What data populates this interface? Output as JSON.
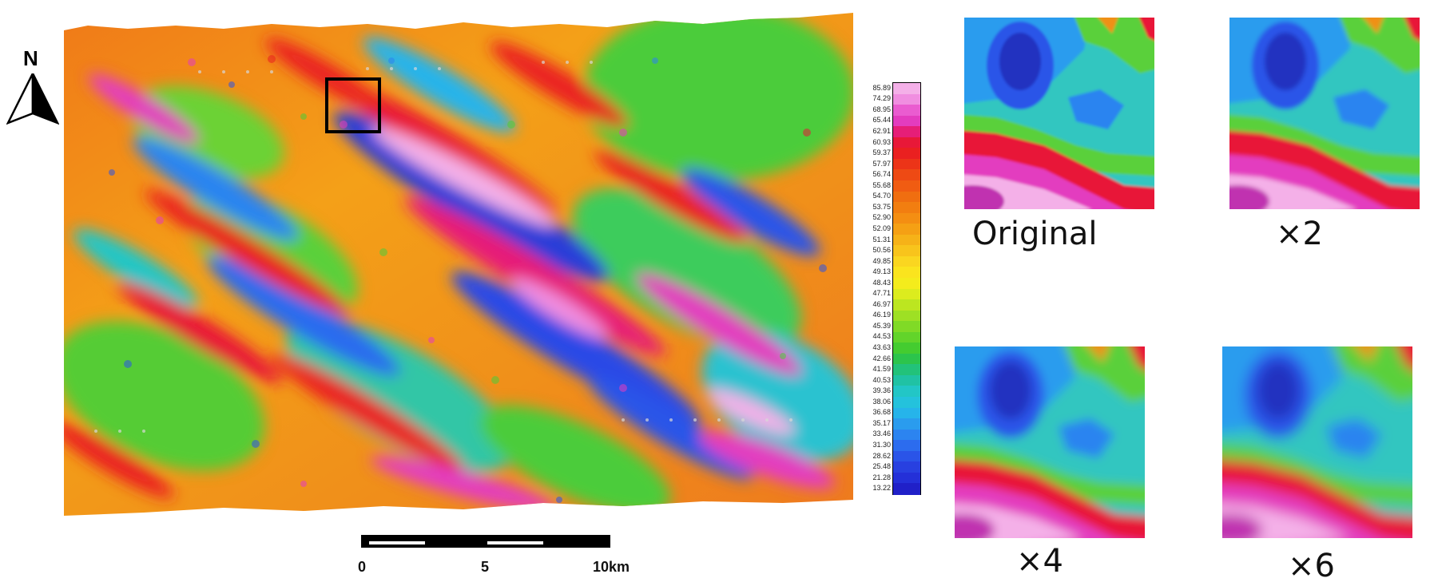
{
  "north_arrow": {
    "label": "N"
  },
  "legend": {
    "values": [
      "85.89",
      "74.29",
      "68.95",
      "65.44",
      "62.91",
      "60.93",
      "59.37",
      "57.97",
      "56.74",
      "55.68",
      "54.70",
      "53.75",
      "52.90",
      "52.09",
      "51.31",
      "50.56",
      "49.85",
      "49.13",
      "48.43",
      "47.71",
      "46.97",
      "46.19",
      "45.39",
      "44.53",
      "43.63",
      "42.66",
      "41.59",
      "40.53",
      "39.36",
      "38.06",
      "36.68",
      "35.17",
      "33.46",
      "31.30",
      "28.62",
      "25.48",
      "21.28",
      "13.22"
    ],
    "colors": [
      "#f4b0e8",
      "#f08ee0",
      "#ea5cd0",
      "#e33cbf",
      "#e61e78",
      "#e81838",
      "#ea2020",
      "#ec3418",
      "#ee4a14",
      "#f05c12",
      "#f06e10",
      "#f27e10",
      "#f48e12",
      "#f5a014",
      "#f6b218",
      "#f8c41c",
      "#fad620",
      "#fae41e",
      "#f4ec1c",
      "#dcec1e",
      "#bce620",
      "#9ee024",
      "#80da26",
      "#62d42a",
      "#44cc30",
      "#2cc44c",
      "#22c27a",
      "#20c2a4",
      "#22c6c6",
      "#24c2dc",
      "#26b4ea",
      "#2a9cee",
      "#2c84f0",
      "#2c6cee",
      "#2a54e8",
      "#2840e0",
      "#2430d8",
      "#2020c8"
    ]
  },
  "scale_bar": {
    "labels": [
      "0",
      "5",
      "10km"
    ]
  },
  "zoom_panels": [
    {
      "caption": "Original"
    },
    {
      "caption": "×2"
    },
    {
      "caption": "×4"
    },
    {
      "caption": "×6"
    }
  ]
}
